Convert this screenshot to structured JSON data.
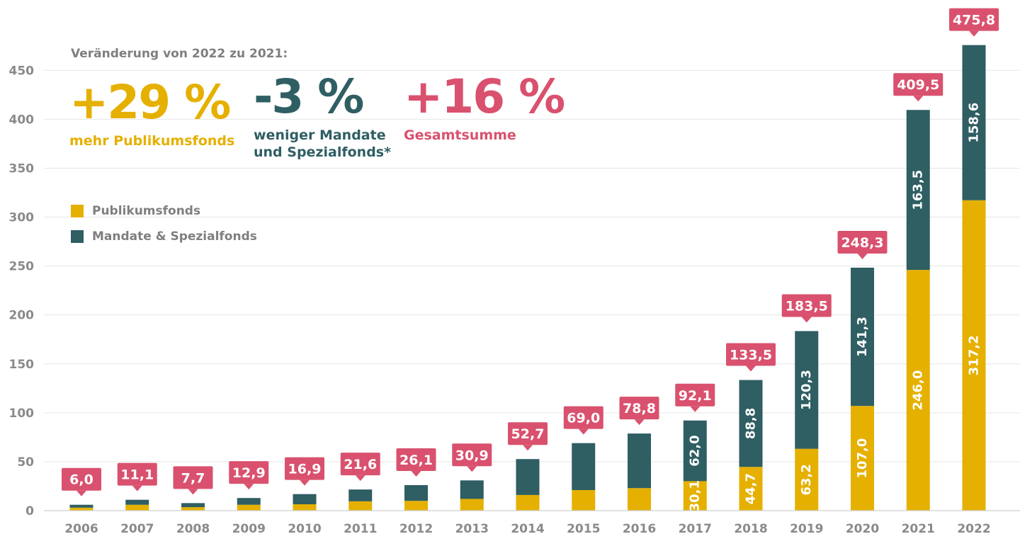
{
  "colors": {
    "publikum": "#e5b000",
    "mandate": "#2f5e63",
    "total": "#d9516e",
    "grid": "#e6e6e6",
    "axis": "#8a8a8a"
  },
  "headline": "Veränderung von 2022 zu 2021:",
  "stats": [
    {
      "value": "+29 %",
      "label_lines": [
        "mehr Publikumsfonds"
      ],
      "color": "#e5b000"
    },
    {
      "value": "-3 %",
      "label_lines": [
        "weniger Mandate",
        "und Spezialfonds*"
      ],
      "color": "#2f5e63"
    },
    {
      "value": "+16 %",
      "label_lines": [
        "Gesamtsumme"
      ],
      "color": "#d9516e"
    }
  ],
  "legend": [
    {
      "label": "Publikumsfonds",
      "color": "#e5b000"
    },
    {
      "label": "Mandate & Spezialfonds",
      "color": "#2f5e63"
    }
  ],
  "chart_data": {
    "type": "bar",
    "stacked": true,
    "title": "",
    "xlabel": "",
    "ylabel": "",
    "ylim": [
      0,
      475
    ],
    "yticks": [
      0,
      50,
      100,
      150,
      200,
      250,
      300,
      350,
      400,
      450
    ],
    "grid": true,
    "categories": [
      "2006",
      "2007",
      "2008",
      "2009",
      "2010",
      "2011",
      "2012",
      "2013",
      "2014",
      "2015",
      "2016",
      "2017",
      "2018",
      "2019",
      "2020",
      "2021",
      "2022"
    ],
    "series": [
      {
        "name": "Publikumsfonds",
        "color": "#e5b000",
        "values": [
          3,
          6,
          3.5,
          6,
          6.5,
          9.5,
          10,
          12,
          16,
          21,
          23,
          30.1,
          44.7,
          63.2,
          107.0,
          246.0,
          317.2
        ],
        "value_labels": [
          "",
          "",
          "",
          "",
          "",
          "",
          "",
          "",
          "",
          "",
          "",
          "30,1",
          "44,7",
          "63,2",
          "107,0",
          "246,0",
          "317,2"
        ]
      },
      {
        "name": "Mandate & Spezialfonds",
        "color": "#2f5e63",
        "values": [
          3,
          5.1,
          4.2,
          6.9,
          10.4,
          12.1,
          16.1,
          18.9,
          36.7,
          48,
          55.8,
          62.0,
          88.8,
          120.3,
          141.3,
          163.5,
          158.6
        ],
        "value_labels": [
          "",
          "",
          "",
          "",
          "",
          "",
          "",
          "",
          "",
          "",
          "",
          "62,0",
          "88,8",
          "120,3",
          "141,3",
          "163,5",
          "158,6"
        ]
      }
    ],
    "totals": [
      "6,0",
      "11,1",
      "7,7",
      "12,9",
      "16,9",
      "21,6",
      "26,1",
      "30,9",
      "52,7",
      "69,0",
      "78,8",
      "92,1",
      "133,5",
      "183,5",
      "248,3",
      "409,5",
      "475,8"
    ]
  }
}
